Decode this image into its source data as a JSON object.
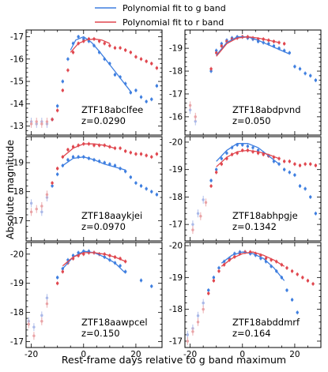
{
  "figure": {
    "ylabel": "Absolute magnitude",
    "xlabel": "Rest-frame days relative to g band maximum",
    "legend": [
      {
        "label": "Polynomial fit to g band",
        "color": "#3f7fe0"
      },
      {
        "label": "Polynomial fit to r band",
        "color": "#e0474f"
      }
    ]
  },
  "colors": {
    "g": "#3f7fe0",
    "r": "#e0474f",
    "g_faint": "#a9b8e8",
    "r_faint": "#e9a3a6"
  },
  "chart_data": [
    {
      "type": "scatter",
      "name": "ZTF18abclfee",
      "title": "ZTF18abclfee",
      "redshift": "z=0.0290",
      "xlim": [
        -22,
        30
      ],
      "ylim": [
        -12.6,
        -17.3
      ],
      "yticks": [
        -13,
        -14,
        -15,
        -16,
        -17
      ],
      "xticks": [
        -20,
        0,
        20
      ],
      "series": [
        {
          "band": "g",
          "x": [
            -20,
            -18,
            -16,
            -14,
            -12,
            -10,
            -8,
            -6,
            -4,
            -2,
            0,
            2,
            4,
            6,
            8,
            10,
            12,
            14,
            16,
            18,
            20,
            22,
            24,
            26,
            28
          ],
          "y": [
            -13.2,
            -13.1,
            -13.2,
            -13.1,
            -13.3,
            -13.9,
            -15.0,
            -16.0,
            -16.7,
            -17.0,
            -16.9,
            -16.8,
            -16.6,
            -16.3,
            -16.0,
            -15.8,
            -15.3,
            -15.2,
            -14.9,
            -14.5,
            -14.6,
            -14.3,
            -14.1,
            -14.2,
            -14.8
          ]
        },
        {
          "band": "r",
          "x": [
            -20,
            -18,
            -16,
            -14,
            -12,
            -10,
            -8,
            -6,
            -4,
            -2,
            0,
            2,
            4,
            6,
            8,
            10,
            12,
            14,
            16,
            18,
            20,
            22,
            24,
            26,
            28
          ],
          "y": [
            -13.1,
            -13.2,
            -13.1,
            -13.2,
            -13.3,
            -13.7,
            -14.6,
            -15.5,
            -16.3,
            -16.7,
            -16.8,
            -16.9,
            -16.9,
            -16.8,
            -16.7,
            -16.6,
            -16.5,
            -16.5,
            -16.4,
            -16.3,
            -16.1,
            -16.0,
            -15.9,
            -15.8,
            -15.6
          ]
        }
      ],
      "fits": [
        {
          "band": "g",
          "x": [
            -5,
            -3,
            0,
            3,
            6,
            9,
            12,
            15,
            18
          ],
          "y": [
            -16.4,
            -16.85,
            -17.0,
            -16.75,
            -16.35,
            -15.9,
            -15.45,
            -15.0,
            -14.55
          ]
        },
        {
          "band": "r",
          "x": [
            -5,
            -2,
            1,
            4,
            7,
            10
          ],
          "y": [
            -16.3,
            -16.7,
            -16.85,
            -16.9,
            -16.85,
            -16.7
          ]
        }
      ]
    },
    {
      "type": "scatter",
      "name": "ZTF18abdpvnd",
      "title": "ZTF18abdpvnd",
      "redshift": "z=0.050",
      "xlim": [
        -22,
        30
      ],
      "ylim": [
        -15.2,
        -19.8
      ],
      "yticks": [
        -16,
        -17,
        -18,
        -19
      ],
      "xticks": [
        -20,
        0,
        20
      ],
      "series": [
        {
          "band": "g",
          "x": [
            -20,
            -18,
            -12,
            -10,
            -8,
            -6,
            -4,
            -2,
            0,
            2,
            4,
            6,
            8,
            10,
            12,
            14,
            16,
            18,
            20,
            22,
            24,
            26,
            28
          ],
          "y": [
            -16.3,
            -15.8,
            -18.0,
            -18.9,
            -19.2,
            -19.35,
            -19.45,
            -19.5,
            -19.5,
            -19.45,
            -19.4,
            -19.3,
            -19.25,
            -19.2,
            -19.1,
            -19.0,
            -18.9,
            -18.8,
            -18.2,
            -18.1,
            -17.9,
            -17.8,
            -17.6
          ]
        },
        {
          "band": "r",
          "x": [
            -20,
            -18,
            -12,
            -10,
            -8,
            -6,
            -4,
            -2,
            0,
            2,
            4,
            6,
            8,
            10,
            12,
            14,
            16
          ],
          "y": [
            -16.5,
            -16.0,
            -18.1,
            -18.8,
            -19.1,
            -19.3,
            -19.4,
            -19.45,
            -19.5,
            -19.5,
            -19.45,
            -19.4,
            -19.4,
            -19.35,
            -19.3,
            -19.25,
            -19.2
          ]
        }
      ],
      "fits": [
        {
          "band": "g",
          "x": [
            -10,
            -6,
            -2,
            2,
            6,
            10,
            14,
            18
          ],
          "y": [
            -18.7,
            -19.25,
            -19.5,
            -19.5,
            -19.35,
            -19.15,
            -18.95,
            -18.75
          ]
        },
        {
          "band": "r",
          "x": [
            -10,
            -6,
            -2,
            2,
            6,
            10,
            14
          ],
          "y": [
            -18.65,
            -19.2,
            -19.45,
            -19.5,
            -19.45,
            -19.35,
            -19.25
          ]
        }
      ]
    },
    {
      "type": "scatter",
      "name": "ZTF18aaykjei",
      "title": "ZTF18aaykjei",
      "redshift": "z=0.0970",
      "xlim": [
        -22,
        30
      ],
      "ylim": [
        -16.3,
        -19.9
      ],
      "yticks": [
        -17,
        -18,
        -19
      ],
      "xticks": [
        -20,
        0,
        20
      ],
      "series": [
        {
          "band": "g",
          "x": [
            -20,
            -16,
            -14,
            -12,
            -10,
            -8,
            -6,
            -4,
            -2,
            0,
            2,
            4,
            6,
            8,
            10,
            12,
            14,
            16,
            18,
            20,
            22,
            24,
            26,
            28
          ],
          "y": [
            -17.6,
            -17.3,
            -17.8,
            -18.2,
            -18.6,
            -18.9,
            -19.1,
            -19.2,
            -19.2,
            -19.2,
            -19.15,
            -19.1,
            -19.05,
            -19.0,
            -18.95,
            -18.9,
            -18.8,
            -18.7,
            -18.5,
            -18.3,
            -18.2,
            -18.1,
            -18.0,
            -17.9
          ]
        },
        {
          "band": "r",
          "x": [
            -20,
            -18,
            -16,
            -14,
            -12,
            -10,
            -8,
            -6,
            -4,
            -2,
            0,
            2,
            4,
            6,
            8,
            10,
            12,
            14,
            16,
            18,
            20,
            22,
            24,
            26,
            28
          ],
          "y": [
            -17.3,
            -17.4,
            -17.5,
            -17.9,
            -18.3,
            -18.8,
            -19.2,
            -19.45,
            -19.55,
            -19.6,
            -19.65,
            -19.65,
            -19.6,
            -19.6,
            -19.6,
            -19.55,
            -19.5,
            -19.5,
            -19.4,
            -19.35,
            -19.3,
            -19.3,
            -19.25,
            -19.2,
            -19.3
          ]
        }
      ],
      "fits": [
        {
          "band": "g",
          "x": [
            -8,
            -4,
            0,
            4,
            8,
            12,
            16
          ],
          "y": [
            -18.9,
            -19.15,
            -19.2,
            -19.1,
            -18.95,
            -18.85,
            -18.75
          ]
        },
        {
          "band": "r",
          "x": [
            -8,
            -4,
            0,
            4,
            8,
            12
          ],
          "y": [
            -19.2,
            -19.5,
            -19.65,
            -19.65,
            -19.6,
            -19.5
          ]
        }
      ]
    },
    {
      "type": "scatter",
      "name": "ZTF18abhpgje",
      "title": "ZTF18abhpgje",
      "redshift": "z=0.1342",
      "xlim": [
        -22,
        30
      ],
      "ylim": [
        -16.4,
        -20.2
      ],
      "yticks": [
        -17,
        -18,
        -19,
        -20
      ],
      "xticks": [
        -20,
        0,
        20
      ],
      "series": [
        {
          "band": "g",
          "x": [
            -19,
            -17,
            -15,
            -12,
            -10,
            -8,
            -6,
            -4,
            -2,
            0,
            2,
            4,
            6,
            8,
            10,
            12,
            14,
            16,
            18,
            20,
            22,
            24,
            26,
            28
          ],
          "y": [
            -17.0,
            -17.4,
            -17.9,
            -18.6,
            -19.0,
            -19.4,
            -19.6,
            -19.8,
            -19.9,
            -19.9,
            -19.85,
            -19.8,
            -19.7,
            -19.6,
            -19.5,
            -19.3,
            -19.2,
            -19.0,
            -18.9,
            -18.8,
            -18.4,
            -18.3,
            -18.0,
            -17.4
          ]
        },
        {
          "band": "r",
          "x": [
            -19,
            -16,
            -14,
            -12,
            -10,
            -8,
            -6,
            -4,
            -2,
            0,
            2,
            4,
            6,
            8,
            10,
            12,
            14,
            16,
            18,
            20,
            22,
            24,
            26,
            28
          ],
          "y": [
            -16.8,
            -17.3,
            -17.8,
            -18.4,
            -18.9,
            -19.2,
            -19.4,
            -19.55,
            -19.6,
            -19.7,
            -19.7,
            -19.65,
            -19.6,
            -19.55,
            -19.5,
            -19.45,
            -19.4,
            -19.3,
            -19.3,
            -19.2,
            -19.15,
            -19.2,
            -19.2,
            -19.15
          ]
        }
      ],
      "fits": [
        {
          "band": "g",
          "x": [
            -10,
            -6,
            -2,
            2,
            6,
            10,
            14
          ],
          "y": [
            -19.3,
            -19.7,
            -19.95,
            -19.95,
            -19.8,
            -19.5,
            -19.2
          ]
        },
        {
          "band": "r",
          "x": [
            -10,
            -6,
            -2,
            2,
            6,
            10,
            14
          ],
          "y": [
            -19.1,
            -19.45,
            -19.65,
            -19.7,
            -19.65,
            -19.55,
            -19.4
          ]
        }
      ]
    },
    {
      "type": "scatter",
      "name": "ZTF18aawpcel",
      "title": "ZTF18aawpcel",
      "redshift": "z=0.150",
      "xlim": [
        -22,
        30
      ],
      "ylim": [
        -16.8,
        -20.4
      ],
      "yticks": [
        -17,
        -18,
        -19,
        -20
      ],
      "xticks": [
        -20,
        0,
        20
      ],
      "series": [
        {
          "band": "g",
          "x": [
            -21,
            -19,
            -16,
            -14,
            -10,
            -8,
            -6,
            -4,
            -2,
            0,
            2,
            4,
            6,
            8,
            10,
            12,
            14,
            16,
            22,
            26
          ],
          "y": [
            -17.7,
            -17.5,
            -17.9,
            -18.5,
            -19.2,
            -19.5,
            -19.8,
            -19.95,
            -20.05,
            -20.1,
            -20.1,
            -20.05,
            -20.0,
            -19.9,
            -19.8,
            -19.7,
            -19.6,
            -19.4,
            -19.1,
            -18.9
          ]
        },
        {
          "band": "r",
          "x": [
            -21,
            -19,
            -16,
            -14,
            -10,
            -8,
            -6,
            -4,
            -2,
            0,
            2,
            4,
            6,
            8,
            10,
            12,
            14,
            16
          ],
          "y": [
            -17.6,
            -17.2,
            -17.7,
            -18.3,
            -19.0,
            -19.4,
            -19.7,
            -19.85,
            -19.95,
            -20.0,
            -20.05,
            -20.05,
            -20.0,
            -20.0,
            -19.95,
            -19.9,
            -19.85,
            -19.75
          ]
        }
      ],
      "fits": [
        {
          "band": "g",
          "x": [
            -8,
            -4,
            0,
            4,
            8,
            12,
            16
          ],
          "y": [
            -19.5,
            -19.9,
            -20.1,
            -20.05,
            -19.9,
            -19.7,
            -19.35
          ]
        },
        {
          "band": "r",
          "x": [
            -8,
            -4,
            0,
            4,
            8,
            12,
            16
          ],
          "y": [
            -19.6,
            -19.9,
            -20.05,
            -20.05,
            -20.0,
            -19.9,
            -19.75
          ]
        }
      ]
    },
    {
      "type": "scatter",
      "name": "ZTF18abddmrf",
      "title": "ZTF18abddmrf",
      "redshift": "z=0.164",
      "xlim": [
        -22,
        30
      ],
      "ylim": [
        -16.8,
        -20.1
      ],
      "yticks": [
        -17,
        -18,
        -19,
        -20
      ],
      "xticks": [
        -20,
        0,
        20
      ],
      "series": [
        {
          "band": "g",
          "x": [
            -21,
            -19,
            -17,
            -15,
            -13,
            -11,
            -9,
            -7,
            -5,
            -3,
            -1,
            1,
            3,
            5,
            7,
            9,
            11,
            13,
            15,
            17,
            19,
            21
          ],
          "y": [
            -17.2,
            -17.4,
            -17.8,
            -18.2,
            -18.6,
            -19.0,
            -19.3,
            -19.5,
            -19.6,
            -19.75,
            -19.8,
            -19.8,
            -19.75,
            -19.7,
            -19.6,
            -19.5,
            -19.35,
            -19.2,
            -19.0,
            -18.6,
            -18.3,
            -17.9
          ]
        },
        {
          "band": "r",
          "x": [
            -21,
            -19,
            -17,
            -15,
            -13,
            -11,
            -9,
            -7,
            -5,
            -3,
            -1,
            1,
            3,
            5,
            7,
            9,
            11,
            13,
            15,
            17,
            19,
            21,
            23,
            25,
            27
          ],
          "y": [
            -17.0,
            -17.3,
            -17.6,
            -18.0,
            -18.5,
            -18.9,
            -19.2,
            -19.4,
            -19.55,
            -19.65,
            -19.75,
            -19.8,
            -19.8,
            -19.75,
            -19.7,
            -19.6,
            -19.55,
            -19.5,
            -19.4,
            -19.3,
            -19.2,
            -19.1,
            -19.0,
            -18.9,
            -18.8
          ]
        }
      ],
      "fits": [
        {
          "band": "g",
          "x": [
            -8,
            -4,
            0,
            4,
            8,
            12,
            16
          ],
          "y": [
            -19.45,
            -19.7,
            -19.8,
            -19.75,
            -19.6,
            -19.3,
            -18.9
          ]
        },
        {
          "band": "r",
          "x": [
            -8,
            -4,
            0,
            4,
            8,
            12,
            16
          ],
          "y": [
            -19.35,
            -19.6,
            -19.75,
            -19.8,
            -19.7,
            -19.55,
            -19.35
          ]
        }
      ]
    }
  ]
}
